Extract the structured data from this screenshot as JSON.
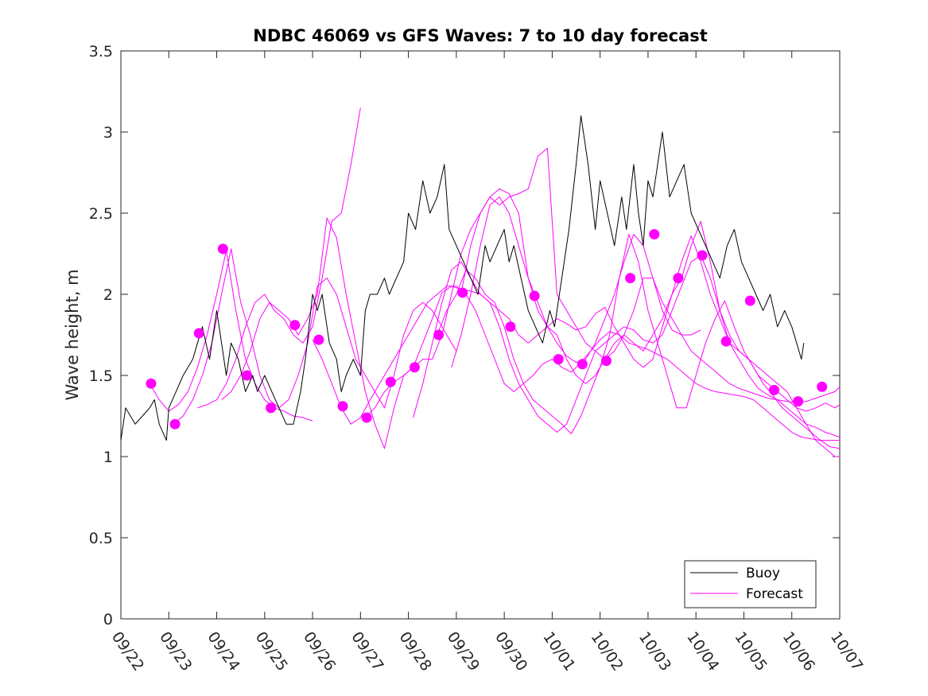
{
  "chart_data": {
    "type": "line",
    "title": "NDBC 46069 vs GFS Waves: 7 to 10 day forecast",
    "xlabel": "",
    "ylabel": "Wave height, m",
    "xlim": [
      0,
      15
    ],
    "ylim": [
      0,
      3.5
    ],
    "x_unit": "days since 09/22",
    "x_ticks": [
      0,
      1,
      2,
      3,
      4,
      5,
      6,
      7,
      8,
      9,
      10,
      11,
      12,
      13,
      14,
      15
    ],
    "x_tick_labels": [
      "09/22",
      "09/23",
      "09/24",
      "09/25",
      "09/26",
      "09/27",
      "09/28",
      "09/29",
      "09/30",
      "10/01",
      "10/02",
      "10/03",
      "10/04",
      "10/05",
      "10/06",
      "10/07"
    ],
    "y_ticks": [
      0,
      0.5,
      1,
      1.5,
      2,
      2.5,
      3,
      3.5
    ],
    "y_tick_labels": [
      "0",
      "0.5",
      "1",
      "1.5",
      "2",
      "2.5",
      "3",
      "3.5"
    ],
    "colors": {
      "buoy": "#000000",
      "forecast": "#ff00ff"
    },
    "legend": {
      "location": "bottom-right",
      "entries": [
        {
          "label": "Buoy",
          "color": "#000000"
        },
        {
          "label": "Forecast",
          "color": "#ff00ff"
        }
      ]
    },
    "series": [
      {
        "name": "Buoy",
        "x": [
          0,
          0.1,
          0.3,
          0.45,
          0.6,
          0.7,
          0.8,
          0.95,
          1.0,
          1.15,
          1.3,
          1.5,
          1.6,
          1.7,
          1.85,
          2.0,
          2.1,
          2.2,
          2.3,
          2.45,
          2.6,
          2.75,
          2.85,
          3.0,
          3.15,
          3.3,
          3.45,
          3.6,
          3.75,
          3.85,
          4.0,
          4.1,
          4.2,
          4.35,
          4.5,
          4.6,
          4.7,
          4.85,
          5.0,
          5.1,
          5.2,
          5.35,
          5.5,
          5.6,
          5.75,
          5.9,
          6.0,
          6.15,
          6.3,
          6.45,
          6.6,
          6.75,
          6.85,
          7.0,
          7.15,
          7.3,
          7.45,
          7.6,
          7.7,
          7.85,
          8.0,
          8.1,
          8.2,
          8.35,
          8.5,
          8.65,
          8.8,
          8.95,
          9.05,
          9.2,
          9.35,
          9.5,
          9.6,
          9.75,
          9.9,
          10.0,
          10.15,
          10.3,
          10.45,
          10.55,
          10.7,
          10.8,
          10.9,
          11.0,
          11.1,
          11.2,
          11.3,
          11.45,
          11.6,
          11.75,
          11.9,
          12.05,
          12.2,
          12.35,
          12.5,
          12.65,
          12.8,
          12.95,
          13.1,
          13.25,
          13.4,
          13.55,
          13.7,
          13.85,
          14.0,
          14.1,
          14.2,
          14.25
        ],
        "y": [
          1.1,
          1.3,
          1.2,
          1.25,
          1.3,
          1.35,
          1.2,
          1.1,
          1.3,
          1.4,
          1.5,
          1.6,
          1.7,
          1.8,
          1.6,
          1.9,
          1.7,
          1.5,
          1.7,
          1.6,
          1.4,
          1.5,
          1.4,
          1.5,
          1.4,
          1.3,
          1.2,
          1.2,
          1.4,
          1.6,
          2.0,
          1.9,
          2.0,
          1.7,
          1.6,
          1.4,
          1.5,
          1.6,
          1.5,
          1.9,
          2.0,
          2.0,
          2.1,
          2.0,
          2.1,
          2.2,
          2.5,
          2.4,
          2.7,
          2.5,
          2.6,
          2.8,
          2.4,
          2.3,
          2.2,
          2.1,
          2.0,
          2.3,
          2.2,
          2.3,
          2.4,
          2.2,
          2.3,
          2.1,
          1.9,
          1.8,
          1.7,
          1.9,
          1.8,
          2.1,
          2.4,
          2.8,
          3.1,
          2.8,
          2.4,
          2.7,
          2.5,
          2.3,
          2.6,
          2.4,
          2.8,
          2.5,
          2.3,
          2.7,
          2.6,
          2.8,
          3.0,
          2.6,
          2.7,
          2.8,
          2.5,
          2.4,
          2.3,
          2.2,
          2.1,
          2.3,
          2.4,
          2.2,
          2.1,
          2.0,
          1.9,
          2.0,
          1.8,
          1.9,
          1.8,
          1.7,
          1.6,
          1.7
        ]
      },
      {
        "name": "Forecast",
        "member": 1,
        "x": [
          0.6,
          0.8,
          1.0,
          1.2,
          1.4,
          1.6,
          1.8,
          2.0,
          2.2,
          2.4,
          2.6,
          2.8,
          3.0,
          3.2,
          3.4,
          3.6,
          3.8,
          4.0
        ],
        "y": [
          1.45,
          1.35,
          1.28,
          1.32,
          1.4,
          1.55,
          1.75,
          2.0,
          2.27,
          1.9,
          1.6,
          1.45,
          1.35,
          1.3,
          1.28,
          1.25,
          1.24,
          1.22
        ]
      },
      {
        "name": "Forecast",
        "member": 2,
        "x": [
          1.1,
          1.3,
          1.5,
          1.7,
          1.9,
          2.1,
          2.3,
          2.5,
          2.7,
          2.9,
          3.1,
          3.3,
          3.5,
          3.7,
          3.9,
          4.1,
          4.3,
          4.5,
          4.7,
          4.9,
          5.1,
          5.3,
          5.5,
          5.7,
          5.9,
          6.1,
          6.3,
          6.5,
          6.7,
          6.9,
          7.0
        ],
        "y": [
          1.2,
          1.25,
          1.35,
          1.5,
          1.7,
          2.0,
          2.28,
          1.95,
          1.75,
          1.5,
          1.35,
          1.3,
          1.35,
          1.5,
          1.7,
          2.05,
          2.1,
          2.0,
          1.8,
          1.6,
          1.5,
          1.4,
          1.3,
          1.5,
          1.75,
          1.9,
          1.95,
          1.9,
          1.8,
          1.7,
          1.65
        ]
      },
      {
        "name": "Forecast",
        "member": 3,
        "x": [
          1.6,
          1.8,
          2.0,
          2.2,
          2.4,
          2.6,
          2.8,
          3.0,
          3.2,
          3.4,
          3.6,
          3.8,
          4.0,
          4.2,
          4.4,
          4.6,
          4.8,
          5.0
        ],
        "y": [
          1.3,
          1.32,
          1.35,
          1.45,
          1.6,
          1.8,
          1.95,
          2.0,
          1.9,
          1.85,
          1.75,
          1.7,
          1.8,
          2.1,
          2.45,
          2.5,
          2.8,
          3.15
        ]
      },
      {
        "name": "Forecast",
        "member": 4,
        "x": [
          2.1,
          2.3,
          2.5,
          2.7,
          2.9,
          3.1,
          3.3,
          3.5,
          3.7,
          3.9,
          4.1,
          4.3,
          4.5,
          4.7,
          4.9,
          5.1,
          5.3,
          5.5,
          5.7,
          5.9,
          6.1,
          6.3,
          6.5,
          6.7,
          6.9,
          7.1,
          7.3,
          7.5,
          7.7,
          7.9,
          8.1,
          8.3,
          8.5,
          8.7,
          8.9,
          9.1,
          9.3,
          9.5,
          9.7,
          9.9,
          10.1,
          10.3,
          10.5,
          10.7,
          10.9,
          11.1,
          11.3,
          11.5,
          11.7,
          11.9,
          12.1,
          12.3,
          12.5,
          12.7,
          12.9,
          13.1,
          13.3,
          13.5,
          13.7,
          13.9,
          14.1,
          14.3,
          14.5,
          14.7,
          14.9,
          15.0
        ],
        "y": [
          1.35,
          1.4,
          1.5,
          1.65,
          1.85,
          1.95,
          1.9,
          1.85,
          1.75,
          1.85,
          2.0,
          2.47,
          2.35,
          2.0,
          1.7,
          1.4,
          1.2,
          1.05,
          1.3,
          1.5,
          1.55,
          1.6,
          1.6,
          1.75,
          2.0,
          2.25,
          2.4,
          2.5,
          2.6,
          2.65,
          2.62,
          2.5,
          2.1,
          1.9,
          1.8,
          1.75,
          1.6,
          1.5,
          1.45,
          1.5,
          1.6,
          1.7,
          1.75,
          1.7,
          1.65,
          1.75,
          1.85,
          2.0,
          2.1,
          2.3,
          2.45,
          2.2,
          1.9,
          1.7,
          1.65,
          1.6,
          1.5,
          1.45,
          1.4,
          1.35,
          1.3,
          1.28,
          1.3,
          1.33,
          1.3,
          1.32
        ]
      },
      {
        "name": "Forecast",
        "member": 5,
        "x": [
          4.0,
          4.2,
          4.4,
          4.6,
          4.8,
          5.0,
          5.2,
          5.4,
          5.6,
          5.8,
          6.0,
          6.2,
          6.4,
          6.6,
          6.8,
          7.0,
          7.2,
          7.4,
          7.6,
          7.8,
          8.0,
          8.2,
          8.4,
          8.6,
          8.8,
          9.0,
          9.2,
          9.4,
          9.6,
          9.8,
          10.0,
          10.2,
          10.4,
          10.6,
          10.8,
          11.0,
          11.2,
          11.4,
          11.6,
          11.8,
          12.0,
          12.2,
          12.4,
          12.6,
          12.8,
          13.0,
          13.2,
          13.4,
          13.6,
          13.8,
          14.0,
          14.2,
          14.4,
          14.6,
          14.8,
          15.0
        ],
        "y": [
          1.72,
          1.6,
          1.45,
          1.3,
          1.2,
          1.24,
          1.35,
          1.45,
          1.55,
          1.65,
          1.75,
          1.85,
          1.95,
          2.0,
          2.05,
          2.05,
          2.0,
          1.9,
          1.75,
          1.6,
          1.45,
          1.4,
          1.45,
          1.5,
          1.57,
          1.6,
          1.55,
          1.52,
          1.58,
          1.65,
          1.72,
          1.77,
          1.75,
          1.7,
          1.68,
          1.66,
          1.63,
          1.6,
          1.55,
          1.5,
          1.45,
          1.42,
          1.4,
          1.39,
          1.38,
          1.37,
          1.35,
          1.3,
          1.25,
          1.2,
          1.15,
          1.12,
          1.11,
          1.1,
          1.1,
          1.1
        ]
      },
      {
        "name": "Forecast",
        "member": 6,
        "x": [
          5.1,
          5.3,
          5.5,
          5.7,
          5.9,
          6.1,
          6.3,
          6.5,
          6.7,
          6.9,
          7.1,
          7.3,
          7.5,
          7.7,
          7.9,
          8.1,
          8.3,
          8.5,
          8.7,
          8.9,
          9.1,
          9.3,
          9.5,
          9.7,
          9.9,
          10.1,
          10.3,
          10.5,
          10.7,
          10.9,
          11.1,
          11.3,
          11.5,
          11.7,
          11.9,
          12.1,
          12.3,
          12.5,
          12.7,
          12.9,
          13.1,
          13.3,
          13.5,
          13.7,
          13.9,
          14.1,
          14.3,
          14.5,
          14.7,
          14.9,
          15.0
        ],
        "y": [
          1.24,
          1.3,
          1.4,
          1.46,
          1.5,
          1.55,
          1.7,
          1.85,
          2.01,
          2.05,
          2.03,
          2.02,
          2.0,
          1.95,
          1.8,
          1.6,
          1.45,
          1.35,
          1.25,
          1.2,
          1.15,
          1.2,
          1.35,
          1.5,
          1.65,
          1.7,
          1.75,
          1.8,
          1.78,
          1.72,
          1.7,
          1.75,
          1.9,
          2.05,
          2.2,
          2.24,
          2.1,
          1.9,
          1.75,
          1.65,
          1.6,
          1.55,
          1.5,
          1.45,
          1.4,
          1.3,
          1.2,
          1.1,
          1.05,
          1.0,
          1.0
        ]
      },
      {
        "name": "Forecast",
        "member": 7,
        "x": [
          6.6,
          6.8,
          7.0,
          7.2,
          7.4,
          7.6,
          7.8,
          8.0,
          8.2,
          8.4,
          8.6,
          8.8,
          9.0,
          9.2,
          9.4,
          9.6,
          9.8,
          10.0,
          10.2,
          10.4,
          10.6,
          10.8,
          11.0,
          11.2,
          11.4,
          11.6,
          11.8,
          12.0,
          12.2,
          12.4,
          12.6,
          12.8,
          13.0,
          13.2,
          13.4,
          13.6,
          13.8,
          14.0,
          14.2,
          14.4,
          14.6,
          14.8,
          15.0
        ],
        "y": [
          1.75,
          1.9,
          2.0,
          2.15,
          2.1,
          2.0,
          1.95,
          1.8,
          1.6,
          1.45,
          1.35,
          1.3,
          1.25,
          1.2,
          1.14,
          1.25,
          1.4,
          1.55,
          1.75,
          2.1,
          2.37,
          2.2,
          1.9,
          1.7,
          1.5,
          1.3,
          1.3,
          1.5,
          1.7,
          1.85,
          1.96,
          1.8,
          1.65,
          1.55,
          1.45,
          1.38,
          1.3,
          1.25,
          1.2,
          1.15,
          1.1,
          1.06,
          1.05
        ]
      },
      {
        "name": "Forecast",
        "member": 8,
        "x": [
          6.1,
          6.3,
          6.5,
          6.7,
          6.9,
          7.1,
          7.3,
          7.5,
          7.7,
          7.9,
          8.1,
          8.3,
          8.5,
          8.7,
          8.9,
          9.1,
          9.3,
          9.5,
          9.7,
          9.9,
          10.1,
          10.3,
          10.5,
          10.7,
          10.9,
          11.1,
          11.3,
          11.5,
          11.7,
          11.9,
          12.1,
          12.3,
          12.5,
          12.7,
          12.9,
          13.1,
          13.3,
          13.5,
          13.7,
          13.9,
          14.1,
          14.3,
          14.5,
          14.7,
          14.9,
          15.0
        ],
        "y": [
          1.24,
          1.45,
          1.7,
          1.95,
          2.15,
          2.2,
          2.1,
          2.0,
          1.95,
          1.9,
          1.85,
          1.75,
          1.7,
          1.75,
          1.8,
          1.85,
          1.82,
          1.78,
          1.8,
          1.88,
          1.92,
          1.8,
          1.7,
          1.6,
          1.55,
          1.6,
          1.8,
          2.0,
          2.2,
          2.36,
          2.2,
          2.0,
          1.85,
          1.7,
          1.6,
          1.5,
          1.42,
          1.38,
          1.35,
          1.3,
          1.25,
          1.2,
          1.18,
          1.15,
          1.13,
          1.12
        ]
      },
      {
        "name": "Forecast",
        "member": 9,
        "x": [
          6.9,
          7.1,
          7.3,
          7.5,
          7.7,
          7.9,
          8.1,
          8.3,
          8.5,
          8.7,
          8.9,
          9.1,
          9.3,
          9.5,
          9.7,
          9.9,
          10.1,
          10.3,
          10.5,
          10.7,
          10.9,
          11.1,
          11.3,
          11.5,
          11.7,
          11.9,
          12.1,
          12.3,
          12.5,
          12.7,
          12.9,
          13.1,
          13.3,
          13.5,
          13.7,
          13.9,
          14.1,
          14.3,
          14.5,
          14.7,
          14.9,
          15.0
        ],
        "y": [
          1.55,
          1.75,
          2.0,
          2.3,
          2.55,
          2.6,
          2.5,
          2.3,
          2.1,
          1.95,
          1.8,
          1.7,
          1.62,
          1.58,
          1.6,
          1.7,
          1.85,
          2.0,
          2.2,
          2.37,
          2.3,
          2.1,
          1.95,
          1.85,
          1.75,
          1.65,
          1.6,
          1.55,
          1.5,
          1.45,
          1.42,
          1.4,
          1.38,
          1.36,
          1.35,
          1.34,
          1.33,
          1.34,
          1.36,
          1.38,
          1.4,
          1.43
        ]
      },
      {
        "name": "Forecast",
        "member": 10,
        "x": [
          7.1,
          7.3,
          7.5,
          7.7,
          7.9,
          8.1,
          8.3,
          8.5,
          8.7,
          8.9,
          9.1,
          9.3,
          9.5,
          9.7,
          9.9,
          10.1,
          10.3,
          10.5,
          10.7,
          10.9,
          11.1,
          11.3,
          11.5,
          11.7,
          11.9,
          12.1
        ],
        "y": [
          2.01,
          2.3,
          2.5,
          2.6,
          2.55,
          2.6,
          2.62,
          2.65,
          2.85,
          2.9,
          2.0,
          1.9,
          1.8,
          1.7,
          1.65,
          1.6,
          1.65,
          1.75,
          1.9,
          2.1,
          2.1,
          1.9,
          1.78,
          1.75,
          1.75,
          1.78
        ]
      }
    ],
    "forecast_markers": {
      "name": "Forecast points",
      "x": [
        0.63,
        1.13,
        1.63,
        2.13,
        2.63,
        3.13,
        3.63,
        4.13,
        4.63,
        5.13,
        5.63,
        6.13,
        6.63,
        7.13,
        8.13,
        8.63,
        9.13,
        9.63,
        10.13,
        10.63,
        11.13,
        11.63,
        12.13,
        12.63,
        13.13,
        13.63,
        14.13,
        14.63
      ],
      "y": [
        1.45,
        1.2,
        1.76,
        2.28,
        1.5,
        1.3,
        1.81,
        1.72,
        1.31,
        1.24,
        1.46,
        1.55,
        1.75,
        2.01,
        1.8,
        1.99,
        1.6,
        1.57,
        1.59,
        2.1,
        2.37,
        2.1,
        2.24,
        1.71,
        1.96,
        1.41,
        1.34,
        1.43
      ]
    }
  }
}
